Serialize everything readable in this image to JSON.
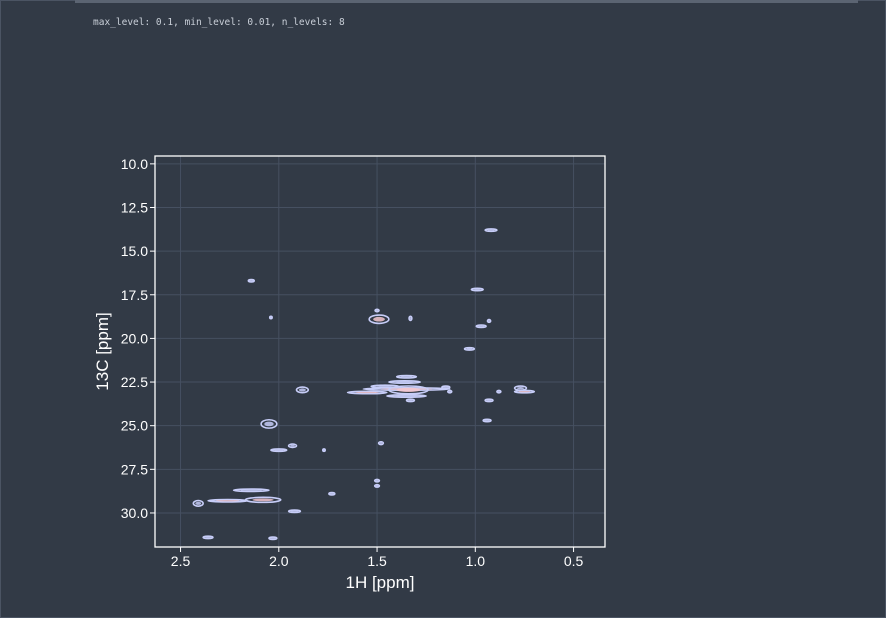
{
  "params_text": "max_level: 0.1, min_level: 0.01, n_levels: 8",
  "colors": {
    "background": "#323a46",
    "axes_border": "#ffffff",
    "grid": "#465061",
    "tick_text": "#ffffff",
    "contour_primary": "#c7cdf8",
    "contour_secondary": "#f4c7cf"
  },
  "chart_data": {
    "type": "contour",
    "title": "",
    "xlabel": "1H [ppm]",
    "ylabel": "13C [ppm]",
    "xlim": [
      2.63,
      0.34
    ],
    "ylim": [
      31.95,
      9.55
    ],
    "x_inverted": true,
    "y_inverted": true,
    "grid": true,
    "xticks": [
      2.5,
      2.0,
      1.5,
      1.0,
      0.5
    ],
    "xtick_labels": [
      "2.5",
      "2.0",
      "1.5",
      "1.0",
      "0.5"
    ],
    "yticks": [
      10.0,
      12.5,
      15.0,
      17.5,
      20.0,
      22.5,
      25.0,
      27.5,
      30.0
    ],
    "ytick_labels": [
      "10.0",
      "12.5",
      "15.0",
      "17.5",
      "20.0",
      "22.5",
      "25.0",
      "27.5",
      "30.0"
    ],
    "peaks": [
      {
        "x": 0.92,
        "y": 13.8,
        "wx": 0.03,
        "wy": 0.06
      },
      {
        "x": 2.14,
        "y": 16.7,
        "wx": 0.015,
        "wy": 0.08
      },
      {
        "x": 0.99,
        "y": 17.2,
        "wx": 0.03,
        "wy": 0.06
      },
      {
        "x": 1.49,
        "y": 18.9,
        "wx": 0.05,
        "wy": 0.3,
        "hot": true
      },
      {
        "x": 1.5,
        "y": 18.4,
        "wx": 0.01,
        "wy": 0.06
      },
      {
        "x": 1.33,
        "y": 18.85,
        "wx": 0.007,
        "wy": 0.15
      },
      {
        "x": 2.04,
        "y": 18.8,
        "wx": 0.005,
        "wy": 0.06
      },
      {
        "x": 0.93,
        "y": 19.0,
        "wx": 0.008,
        "wy": 0.1
      },
      {
        "x": 0.97,
        "y": 19.3,
        "wx": 0.025,
        "wy": 0.06
      },
      {
        "x": 1.03,
        "y": 20.6,
        "wx": 0.025,
        "wy": 0.06
      },
      {
        "x": 1.35,
        "y": 22.2,
        "wx": 0.05,
        "wy": 0.07
      },
      {
        "x": 1.36,
        "y": 22.5,
        "wx": 0.08,
        "wy": 0.07
      },
      {
        "x": 1.35,
        "y": 22.9,
        "wx": 0.22,
        "wy": 0.08,
        "hot": true
      },
      {
        "x": 1.34,
        "y": 22.95,
        "wx": 0.1,
        "wy": 0.28,
        "hot": true
      },
      {
        "x": 1.35,
        "y": 23.3,
        "wx": 0.1,
        "wy": 0.08
      },
      {
        "x": 1.33,
        "y": 23.55,
        "wx": 0.02,
        "wy": 0.08
      },
      {
        "x": 1.46,
        "y": 22.75,
        "wx": 0.07,
        "wy": 0.04
      },
      {
        "x": 1.55,
        "y": 23.1,
        "wx": 0.1,
        "wy": 0.035,
        "hot": true
      },
      {
        "x": 1.15,
        "y": 22.8,
        "wx": 0.02,
        "wy": 0.05
      },
      {
        "x": 1.13,
        "y": 23.05,
        "wx": 0.01,
        "wy": 0.05
      },
      {
        "x": 1.88,
        "y": 22.95,
        "wx": 0.03,
        "wy": 0.2
      },
      {
        "x": 0.77,
        "y": 22.85,
        "wx": 0.03,
        "wy": 0.15
      },
      {
        "x": 0.75,
        "y": 23.05,
        "wx": 0.05,
        "wy": 0.05,
        "hot": true
      },
      {
        "x": 0.88,
        "y": 23.05,
        "wx": 0.01,
        "wy": 0.05
      },
      {
        "x": 0.93,
        "y": 23.55,
        "wx": 0.02,
        "wy": 0.06
      },
      {
        "x": 0.94,
        "y": 24.7,
        "wx": 0.02,
        "wy": 0.06
      },
      {
        "x": 2.05,
        "y": 24.9,
        "wx": 0.04,
        "wy": 0.3
      },
      {
        "x": 1.48,
        "y": 26.0,
        "wx": 0.012,
        "wy": 0.1
      },
      {
        "x": 1.93,
        "y": 26.15,
        "wx": 0.02,
        "wy": 0.12
      },
      {
        "x": 2.0,
        "y": 26.4,
        "wx": 0.04,
        "wy": 0.06
      },
      {
        "x": 1.77,
        "y": 26.4,
        "wx": 0.004,
        "wy": 0.05
      },
      {
        "x": 1.5,
        "y": 28.15,
        "wx": 0.012,
        "wy": 0.06
      },
      {
        "x": 1.5,
        "y": 28.45,
        "wx": 0.012,
        "wy": 0.05
      },
      {
        "x": 2.14,
        "y": 28.7,
        "wx": 0.09,
        "wy": 0.06
      },
      {
        "x": 1.73,
        "y": 28.9,
        "wx": 0.015,
        "wy": 0.05
      },
      {
        "x": 2.08,
        "y": 29.25,
        "wx": 0.09,
        "wy": 0.18,
        "hot": true
      },
      {
        "x": 2.26,
        "y": 29.3,
        "wx": 0.1,
        "wy": 0.035,
        "hot": true
      },
      {
        "x": 2.41,
        "y": 29.45,
        "wx": 0.025,
        "wy": 0.2
      },
      {
        "x": 1.92,
        "y": 29.9,
        "wx": 0.03,
        "wy": 0.05
      },
      {
        "x": 2.36,
        "y": 31.4,
        "wx": 0.025,
        "wy": 0.05
      },
      {
        "x": 2.03,
        "y": 31.45,
        "wx": 0.02,
        "wy": 0.05
      }
    ]
  }
}
